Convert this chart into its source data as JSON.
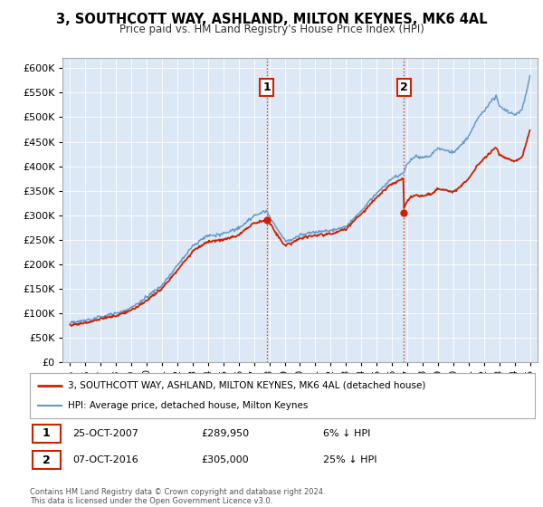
{
  "title": "3, SOUTHCOTT WAY, ASHLAND, MILTON KEYNES, MK6 4AL",
  "subtitle": "Price paid vs. HM Land Registry's House Price Index (HPI)",
  "bg_color": "#dce8f5",
  "legend_line1": "3, SOUTHCOTT WAY, ASHLAND, MILTON KEYNES, MK6 4AL (detached house)",
  "legend_line2": "HPI: Average price, detached house, Milton Keynes",
  "red_color": "#cc2200",
  "blue_color": "#6699cc",
  "purchase1_x": 2007.82,
  "purchase1_price": 289950,
  "purchase2_x": 2016.77,
  "purchase2_price": 305000,
  "footnote": "Contains HM Land Registry data © Crown copyright and database right 2024.\nThis data is licensed under the Open Government Licence v3.0.",
  "ylim_min": 0,
  "ylim_max": 620000,
  "xlim_min": 1994.5,
  "xlim_max": 2025.5,
  "yticks": [
    0,
    50000,
    100000,
    150000,
    200000,
    250000,
    300000,
    350000,
    400000,
    450000,
    500000,
    550000,
    600000
  ]
}
